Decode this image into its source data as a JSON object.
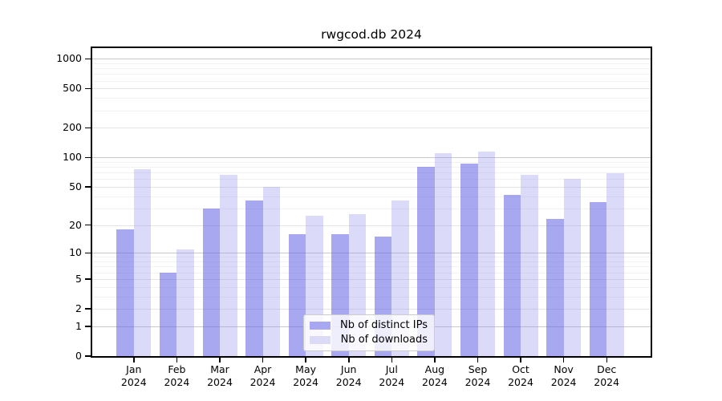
{
  "chart_data": {
    "type": "bar",
    "title": "rwgcod.db 2024",
    "xlabel": "",
    "ylabel": "",
    "categories": [
      "Jan 2024",
      "Feb 2024",
      "Mar 2024",
      "Apr 2024",
      "May 2024",
      "Jun 2024",
      "Jul 2024",
      "Aug 2024",
      "Sep 2024",
      "Oct 2024",
      "Nov 2024",
      "Dec 2024"
    ],
    "series": [
      {
        "name": "Nb of distinct IPs",
        "swatch_color": "#a8a8f2",
        "bar_fill": "rgba(102,102,230,0.57)",
        "values": [
          18,
          6,
          30,
          36,
          16,
          16,
          15,
          80,
          87,
          41,
          23,
          35
        ]
      },
      {
        "name": "Nb of downloads",
        "swatch_color": "#dbdbf8",
        "bar_fill": "rgba(153,153,238,0.35)",
        "values": [
          76,
          11,
          66,
          50,
          25,
          26,
          36,
          110,
          115,
          66,
          60,
          69
        ]
      }
    ],
    "yscale": "log10(1+y)",
    "ylim": [
      0,
      1280
    ],
    "yticks": [
      0,
      1,
      2,
      5,
      10,
      20,
      50,
      100,
      200,
      500,
      1000
    ],
    "grid": true,
    "legend_position": "inside-bottom-center",
    "axis_color": "#000000",
    "grid_major_color": "#c8c8c8",
    "grid_minor_color": "#f2f2f2"
  }
}
